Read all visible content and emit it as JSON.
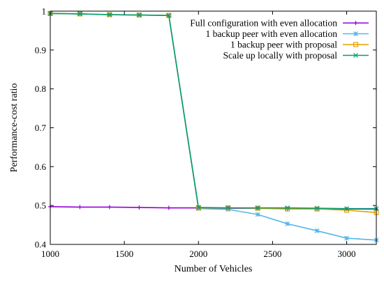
{
  "chart_data": {
    "type": "line",
    "xlabel": "Number of Vehicles",
    "ylabel": "Performance-cost ratio",
    "xlim": [
      1000,
      3200
    ],
    "ylim": [
      0.4,
      1.0
    ],
    "x_ticks": [
      1000,
      1500,
      2000,
      2500,
      3000
    ],
    "y_ticks": [
      0.4,
      0.5,
      0.6,
      0.7,
      0.8,
      0.9,
      1
    ],
    "x_tick_labels": [
      "1000",
      "1500",
      "2000",
      "2500",
      "3000"
    ],
    "y_tick_labels": [
      "0.4",
      "0.5",
      "0.6",
      "0.7",
      "0.8",
      "0.9",
      "1"
    ],
    "grid": false,
    "legend_position": "top-right",
    "x": [
      1000,
      1200,
      1400,
      1600,
      1800,
      2000,
      2200,
      2400,
      2600,
      2800,
      3000,
      3200
    ],
    "series": [
      {
        "name": "Full configuration with even allocation",
        "color": "#9400d3",
        "marker": "plus",
        "values": [
          0.497,
          0.496,
          0.496,
          0.495,
          0.494,
          0.494,
          0.493,
          0.493,
          0.492,
          0.492,
          0.491,
          0.491
        ]
      },
      {
        "name": "1 backup peer with even allocation",
        "color": "#56b4e9",
        "marker": "asterisk",
        "values": [
          0.994,
          0.993,
          0.991,
          0.99,
          0.989,
          0.492,
          0.49,
          0.477,
          0.453,
          0.435,
          0.416,
          0.411
        ]
      },
      {
        "name": "1 backup peer with proposal",
        "color": "#e69f00",
        "marker": "square",
        "values": [
          0.994,
          0.993,
          0.991,
          0.99,
          0.989,
          0.494,
          0.494,
          0.493,
          0.491,
          0.491,
          0.488,
          0.482
        ]
      },
      {
        "name": "Scale up locally with proposal",
        "color": "#009e73",
        "marker": "cross",
        "values": [
          0.994,
          0.993,
          0.991,
          0.99,
          0.989,
          0.495,
          0.494,
          0.494,
          0.494,
          0.493,
          0.492,
          0.492
        ]
      }
    ]
  }
}
